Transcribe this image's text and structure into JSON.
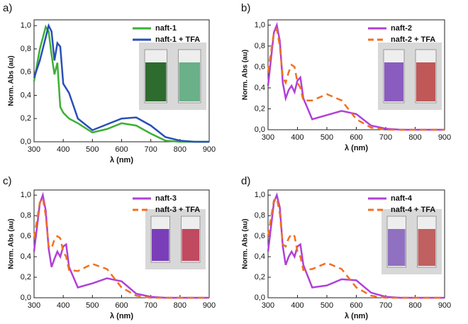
{
  "chart_data": [
    {
      "type": "line",
      "panel_label": "a)",
      "xlabel": "λ (nm)",
      "ylabel": "Norm. Abs (au)",
      "xlim": [
        300,
        900
      ],
      "xticks": [
        300,
        400,
        500,
        600,
        700,
        800,
        900
      ],
      "ylim": [
        0,
        1.05
      ],
      "yticks": [
        {
          "value": 0,
          "label": "0,0"
        },
        {
          "value": 0.2,
          "label": "0,2"
        },
        {
          "value": 0.4,
          "label": "0,4"
        },
        {
          "value": 0.6,
          "label": "0,6"
        },
        {
          "value": 0.8,
          "label": "0,8"
        },
        {
          "value": 1,
          "label": "1,0"
        }
      ],
      "x": [
        300,
        320,
        340,
        350,
        360,
        370,
        380,
        390,
        400,
        420,
        450,
        500,
        550,
        600,
        650,
        700,
        750,
        800,
        850,
        900
      ],
      "series": [
        {
          "name": "naft-1",
          "color": "#3cb034",
          "dashed": false,
          "values": [
            0.52,
            0.8,
            0.99,
            0.95,
            0.75,
            0.58,
            0.68,
            0.3,
            0.25,
            0.2,
            0.16,
            0.08,
            0.11,
            0.16,
            0.14,
            0.07,
            0.01,
            0,
            0,
            0
          ]
        },
        {
          "name": "naft-1 + TFA",
          "color": "#2a4fb8",
          "dashed": false,
          "values": [
            0.55,
            0.7,
            0.9,
            1.0,
            0.95,
            0.7,
            0.85,
            0.82,
            0.5,
            0.42,
            0.2,
            0.1,
            0.15,
            0.2,
            0.21,
            0.14,
            0.04,
            0.01,
            0,
            0
          ]
        }
      ]
    },
    {
      "type": "line",
      "panel_label": "b)",
      "xlabel": "λ (nm)",
      "ylabel": "Norm. Abs (au)",
      "xlim": [
        300,
        900
      ],
      "xticks": [
        300,
        400,
        500,
        600,
        700,
        800,
        900
      ],
      "ylim": [
        0,
        1.05
      ],
      "yticks": [
        {
          "value": 0,
          "label": "0,0"
        },
        {
          "value": 0.2,
          "label": "0,2"
        },
        {
          "value": 0.4,
          "label": "0,4"
        },
        {
          "value": 0.6,
          "label": "0,6"
        },
        {
          "value": 0.8,
          "label": "0,8"
        },
        {
          "value": 1,
          "label": "1,0"
        }
      ],
      "x": [
        300,
        320,
        330,
        340,
        350,
        360,
        370,
        380,
        390,
        400,
        410,
        420,
        450,
        500,
        550,
        600,
        650,
        700,
        750,
        800,
        850,
        900
      ],
      "series": [
        {
          "name": "naft-2",
          "color": "#b040d8",
          "dashed": false,
          "values": [
            0.42,
            0.93,
            1.0,
            0.85,
            0.45,
            0.3,
            0.38,
            0.42,
            0.36,
            0.47,
            0.5,
            0.3,
            0.1,
            0.14,
            0.18,
            0.15,
            0.04,
            0.01,
            0,
            0,
            0,
            0
          ]
        },
        {
          "name": "naft-2 + TFA",
          "color": "#f07020",
          "dashed": true,
          "values": [
            0.55,
            0.93,
            0.96,
            0.8,
            0.5,
            0.45,
            0.55,
            0.62,
            0.6,
            0.45,
            0.4,
            0.28,
            0.28,
            0.34,
            0.28,
            0.1,
            0.02,
            0,
            0,
            0,
            0,
            0
          ]
        }
      ]
    },
    {
      "type": "line",
      "panel_label": "c)",
      "xlabel": "λ (nm)",
      "ylabel": "Norm. Abs (au)",
      "xlim": [
        300,
        900
      ],
      "xticks": [
        300,
        400,
        500,
        600,
        700,
        800,
        900
      ],
      "ylim": [
        0,
        1.05
      ],
      "yticks": [
        {
          "value": 0,
          "label": "0,0"
        },
        {
          "value": 0.2,
          "label": "0,2"
        },
        {
          "value": 0.4,
          "label": "0,4"
        },
        {
          "value": 0.6,
          "label": "0,6"
        },
        {
          "value": 0.8,
          "label": "0,8"
        },
        {
          "value": 1,
          "label": "1,0"
        }
      ],
      "x": [
        300,
        320,
        330,
        340,
        350,
        360,
        370,
        380,
        390,
        400,
        410,
        420,
        450,
        500,
        550,
        600,
        650,
        700,
        750,
        800,
        850,
        900
      ],
      "series": [
        {
          "name": "naft-3",
          "color": "#b040d8",
          "dashed": false,
          "values": [
            0.45,
            0.92,
            1.0,
            0.85,
            0.48,
            0.3,
            0.38,
            0.45,
            0.4,
            0.5,
            0.52,
            0.3,
            0.1,
            0.14,
            0.19,
            0.16,
            0.04,
            0.01,
            0,
            0,
            0,
            0
          ]
        },
        {
          "name": "naft-3 + TFA",
          "color": "#f07020",
          "dashed": true,
          "values": [
            0.58,
            0.93,
            0.97,
            0.8,
            0.5,
            0.48,
            0.57,
            0.6,
            0.58,
            0.45,
            0.4,
            0.27,
            0.26,
            0.33,
            0.28,
            0.1,
            0.02,
            0,
            0,
            0,
            0,
            0
          ]
        }
      ]
    },
    {
      "type": "line",
      "panel_label": "d)",
      "xlabel": "λ (nm)",
      "ylabel": "Norm. Abs (au)",
      "xlim": [
        300,
        900
      ],
      "xticks": [
        300,
        400,
        500,
        600,
        700,
        800,
        900
      ],
      "ylim": [
        0,
        1.05
      ],
      "yticks": [
        {
          "value": 0,
          "label": "0,0"
        },
        {
          "value": 0.2,
          "label": "0,2"
        },
        {
          "value": 0.4,
          "label": "0,4"
        },
        {
          "value": 0.6,
          "label": "0,6"
        },
        {
          "value": 0.8,
          "label": "0,8"
        },
        {
          "value": 1,
          "label": "1,0"
        }
      ],
      "x": [
        300,
        320,
        330,
        340,
        350,
        360,
        370,
        380,
        390,
        400,
        410,
        420,
        450,
        500,
        550,
        600,
        650,
        700,
        750,
        800,
        850,
        900
      ],
      "series": [
        {
          "name": "naft-4",
          "color": "#b040d8",
          "dashed": false,
          "values": [
            0.45,
            0.93,
            1.0,
            0.88,
            0.5,
            0.32,
            0.4,
            0.45,
            0.4,
            0.5,
            0.52,
            0.32,
            0.1,
            0.12,
            0.18,
            0.17,
            0.05,
            0.01,
            0,
            0,
            0,
            0
          ]
        },
        {
          "name": "naft-4 + TFA",
          "color": "#f07020",
          "dashed": true,
          "values": [
            0.6,
            0.95,
            0.97,
            0.82,
            0.52,
            0.5,
            0.58,
            0.62,
            0.6,
            0.45,
            0.4,
            0.27,
            0.28,
            0.34,
            0.28,
            0.1,
            0.02,
            0,
            0,
            0,
            0,
            0
          ]
        }
      ]
    }
  ]
}
